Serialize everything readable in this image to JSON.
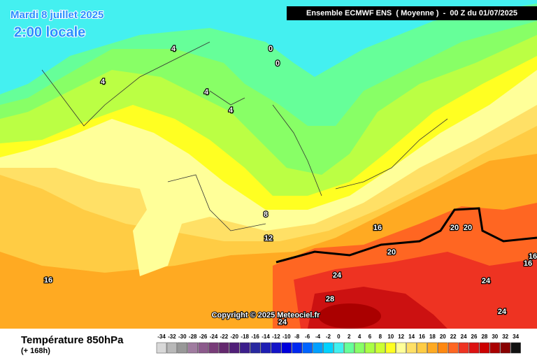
{
  "header": {
    "date": "Mardi 8 juillet 2025",
    "time": "2:00 locale",
    "run": "Ensemble ECMWF ENS  ( Moyenne )  -  00 Z du 01/07/2025"
  },
  "copyright": "Copyright © 2025 Meteociel.fr",
  "contour_labels": [
    "4",
    "0",
    "0",
    "4",
    "4",
    "4",
    "8",
    "12",
    "16",
    "20",
    "20",
    "16",
    "16",
    "20",
    "24",
    "16",
    "24",
    "28",
    "24",
    "24"
  ],
  "footer": {
    "title": "Température 850hPa",
    "subtitle": "(+ 168h)"
  },
  "legend": {
    "ticks": [
      -34,
      -32,
      -30,
      -28,
      -26,
      -24,
      -22,
      -20,
      -18,
      -16,
      -14,
      -12,
      -10,
      -8,
      -6,
      -4,
      -2,
      0,
      2,
      4,
      6,
      8,
      10,
      12,
      14,
      16,
      18,
      20,
      22,
      24,
      26,
      28,
      30,
      32,
      34
    ],
    "colors": [
      "#d8d8d8",
      "#b8b8b8",
      "#989898",
      "#a07ca0",
      "#8c5a8c",
      "#783c78",
      "#64286e",
      "#501e78",
      "#3c1e8c",
      "#2828a0",
      "#1e1eb4",
      "#1414c8",
      "#0000dc",
      "#0028f0",
      "#0064ff",
      "#00a0ff",
      "#00d2ff",
      "#40f0f0",
      "#66ff99",
      "#88ff66",
      "#aaff44",
      "#ccff33",
      "#ffff22",
      "#ffff99",
      "#ffe066",
      "#ffcc44",
      "#ffaa22",
      "#ff8811",
      "#ff6622",
      "#ee3322",
      "#dd1111",
      "#cc0000",
      "#aa0000",
      "#880000",
      "#111111"
    ]
  }
}
